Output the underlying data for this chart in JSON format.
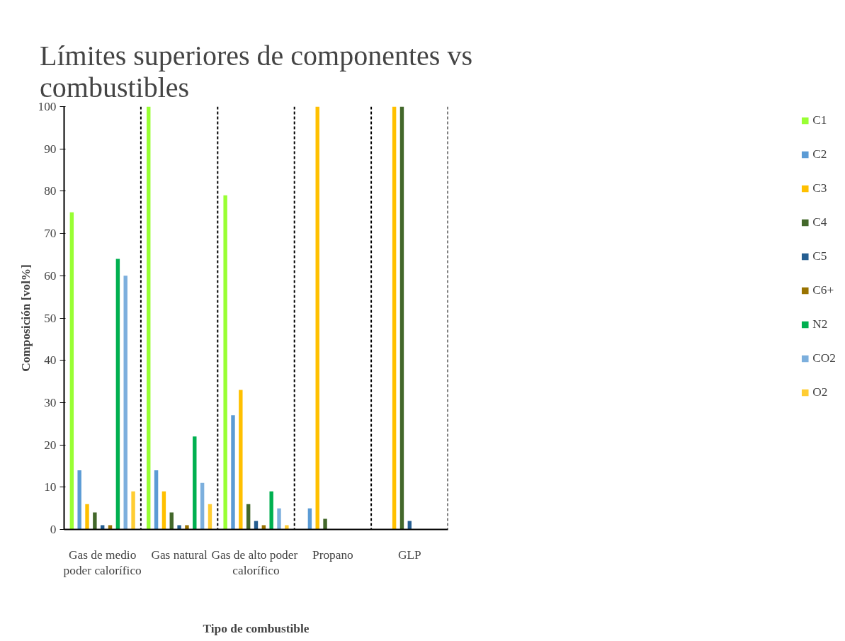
{
  "chart_data": {
    "type": "bar",
    "title": "Límites superiores de componentes vs\ncombustibles",
    "xlabel": "Tipo de combustible",
    "ylabel": "Composición [vol%]",
    "categories": [
      "Gas de medio\npoder calorífico",
      "Gas natural",
      "Gas de alto  poder\ncalorífico",
      "Propano",
      "GLP"
    ],
    "series": [
      {
        "name": "C1",
        "color": "#99ff33",
        "values": [
          75,
          100,
          79,
          0,
          0
        ]
      },
      {
        "name": "C2",
        "color": "#5b9bd5",
        "values": [
          14,
          14,
          27,
          5,
          0
        ]
      },
      {
        "name": "C3",
        "color": "#ffc000",
        "values": [
          6,
          9,
          33,
          100,
          100
        ]
      },
      {
        "name": "C4",
        "color": "#43682b",
        "values": [
          4,
          4,
          6,
          2.5,
          100
        ]
      },
      {
        "name": "C5",
        "color": "#255e91",
        "values": [
          1,
          1,
          2,
          0,
          2
        ]
      },
      {
        "name": "C6+",
        "color": "#997300",
        "values": [
          1,
          1,
          1,
          0,
          0
        ]
      },
      {
        "name": "N2",
        "color": "#00b050",
        "values": [
          64,
          22,
          9,
          0,
          0
        ]
      },
      {
        "name": "CO2",
        "color": "#7cafdd",
        "values": [
          60,
          11,
          5,
          0,
          0
        ]
      },
      {
        "name": "O2",
        "color": "#ffcd33",
        "values": [
          9,
          6,
          1,
          0,
          0
        ]
      }
    ],
    "ylim": [
      0,
      100
    ],
    "yticks": [
      0,
      10,
      20,
      30,
      40,
      50,
      60,
      70,
      80,
      90,
      100
    ],
    "grid": "x",
    "legend": "right"
  }
}
